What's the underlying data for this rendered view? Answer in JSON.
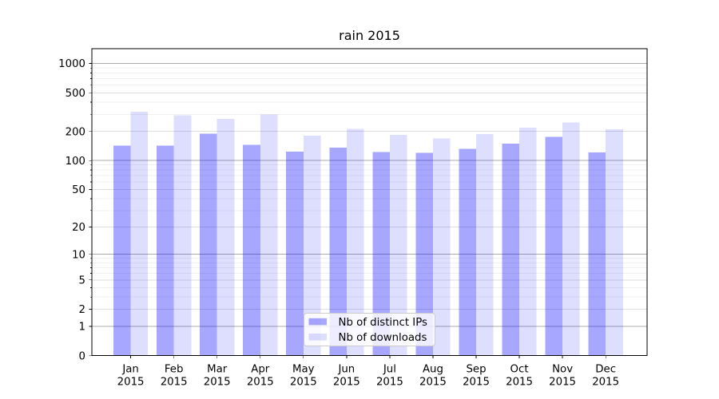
{
  "chart_data": {
    "type": "bar",
    "title": "rain 2015",
    "xlabel": "",
    "ylabel": "",
    "x_tick_year": "2015",
    "categories": [
      "Jan",
      "Feb",
      "Mar",
      "Apr",
      "May",
      "Jun",
      "Jul",
      "Aug",
      "Sep",
      "Oct",
      "Nov",
      "Dec"
    ],
    "series": [
      {
        "name": "Nb of distinct IPs",
        "color": "rgba(0,0,255,0.345)",
        "values": [
          143,
          143,
          190,
          146,
          124,
          136,
          122,
          120,
          132,
          150,
          175,
          121
        ]
      },
      {
        "name": "Nb of downloads",
        "color": "rgba(0,0,255,0.13)",
        "values": [
          320,
          292,
          270,
          300,
          181,
          212,
          184,
          170,
          188,
          219,
          248,
          210
        ]
      }
    ],
    "y_scale": "log1p",
    "ylim": [
      0,
      1400
    ],
    "y_ticks": [
      0,
      1,
      2,
      5,
      10,
      20,
      50,
      100,
      200,
      500,
      1000
    ],
    "y_minor_ticks": [
      3,
      4,
      6,
      7,
      8,
      9,
      30,
      40,
      60,
      70,
      80,
      90,
      300,
      400,
      600,
      700,
      800,
      900
    ],
    "grid": true,
    "legend_position": "lower center",
    "colors": {
      "background": "#ffffff",
      "axis": "#000000",
      "text": "#000000",
      "major_grid": "#ababab",
      "mid_grid": "#dedede",
      "minor_grid": "#f0f0f0",
      "legend_border": "#cccccc",
      "legend_background": "rgba(255,255,255,0.8)"
    }
  }
}
